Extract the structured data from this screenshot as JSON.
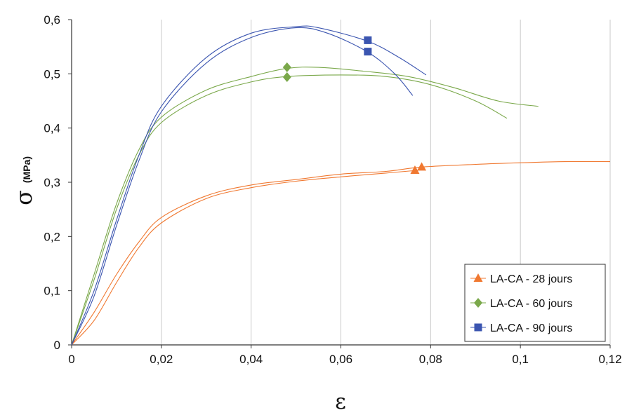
{
  "chart_data": {
    "type": "line",
    "xlabel": "ε",
    "ylabel_symbol": "σ",
    "ylabel_unit": "(MPa)",
    "xlim": [
      0,
      0.12
    ],
    "ylim": [
      0,
      0.6
    ],
    "x_ticks": [
      0,
      0.02,
      0.04,
      0.06,
      0.08,
      0.1,
      0.12
    ],
    "x_tick_labels": [
      "0",
      "0,02",
      "0,04",
      "0,06",
      "0,08",
      "0,1",
      "0,12"
    ],
    "y_ticks": [
      0,
      0.1,
      0.2,
      0.3,
      0.4,
      0.5,
      0.6
    ],
    "y_tick_labels": [
      "0",
      "0,1",
      "0,2",
      "0,3",
      "0,4",
      "0,5",
      "0,6"
    ],
    "grid": "vertical",
    "legend_position": "bottom-right",
    "series": [
      {
        "name": "LA-CA - 28 jours",
        "color": "#f07830",
        "marker": "triangle",
        "curves": [
          [
            [
              0,
              0
            ],
            [
              0.005,
              0.06
            ],
            [
              0.01,
              0.13
            ],
            [
              0.015,
              0.19
            ],
            [
              0.02,
              0.235
            ],
            [
              0.03,
              0.275
            ],
            [
              0.04,
              0.295
            ],
            [
              0.05,
              0.305
            ],
            [
              0.06,
              0.315
            ],
            [
              0.07,
              0.32
            ],
            [
              0.078,
              0.328
            ],
            [
              0.09,
              0.333
            ],
            [
              0.1,
              0.336
            ],
            [
              0.11,
              0.338
            ],
            [
              0.12,
              0.338
            ]
          ],
          [
            [
              0,
              0
            ],
            [
              0.005,
              0.045
            ],
            [
              0.01,
              0.115
            ],
            [
              0.015,
              0.18
            ],
            [
              0.02,
              0.225
            ],
            [
              0.03,
              0.27
            ],
            [
              0.04,
              0.29
            ],
            [
              0.05,
              0.302
            ],
            [
              0.06,
              0.31
            ],
            [
              0.07,
              0.317
            ],
            [
              0.077,
              0.322
            ]
          ]
        ],
        "markers": [
          [
            0.0765,
            0.322
          ],
          [
            0.078,
            0.328
          ]
        ]
      },
      {
        "name": "LA-CA - 60 jours",
        "color": "#7aa84a",
        "marker": "diamond",
        "curves": [
          [
            [
              0,
              0
            ],
            [
              0.005,
              0.13
            ],
            [
              0.01,
              0.26
            ],
            [
              0.015,
              0.36
            ],
            [
              0.02,
              0.42
            ],
            [
              0.03,
              0.47
            ],
            [
              0.04,
              0.495
            ],
            [
              0.048,
              0.51
            ],
            [
              0.055,
              0.512
            ],
            [
              0.065,
              0.505
            ],
            [
              0.075,
              0.495
            ],
            [
              0.085,
              0.475
            ],
            [
              0.095,
              0.45
            ],
            [
              0.104,
              0.44
            ]
          ],
          [
            [
              0,
              0
            ],
            [
              0.005,
              0.12
            ],
            [
              0.01,
              0.25
            ],
            [
              0.015,
              0.35
            ],
            [
              0.02,
              0.41
            ],
            [
              0.03,
              0.46
            ],
            [
              0.04,
              0.485
            ],
            [
              0.048,
              0.495
            ],
            [
              0.06,
              0.498
            ],
            [
              0.07,
              0.495
            ],
            [
              0.08,
              0.48
            ],
            [
              0.09,
              0.45
            ],
            [
              0.097,
              0.418
            ]
          ]
        ],
        "markers": [
          [
            0.048,
            0.512
          ],
          [
            0.048,
            0.494
          ]
        ]
      },
      {
        "name": "LA-CA - 90 jours",
        "color": "#3b55b0",
        "marker": "square",
        "curves": [
          [
            [
              0,
              0
            ],
            [
              0.005,
              0.1
            ],
            [
              0.01,
              0.23
            ],
            [
              0.015,
              0.35
            ],
            [
              0.02,
              0.44
            ],
            [
              0.03,
              0.53
            ],
            [
              0.04,
              0.575
            ],
            [
              0.05,
              0.587
            ],
            [
              0.055,
              0.585
            ],
            [
              0.066,
              0.56
            ],
            [
              0.073,
              0.53
            ],
            [
              0.079,
              0.498
            ]
          ],
          [
            [
              0,
              0
            ],
            [
              0.005,
              0.09
            ],
            [
              0.01,
              0.22
            ],
            [
              0.015,
              0.34
            ],
            [
              0.02,
              0.43
            ],
            [
              0.03,
              0.52
            ],
            [
              0.04,
              0.567
            ],
            [
              0.05,
              0.585
            ],
            [
              0.057,
              0.575
            ],
            [
              0.066,
              0.54
            ],
            [
              0.072,
              0.5
            ],
            [
              0.076,
              0.46
            ]
          ]
        ],
        "markers": [
          [
            0.066,
            0.562
          ],
          [
            0.066,
            0.541
          ]
        ]
      }
    ]
  }
}
